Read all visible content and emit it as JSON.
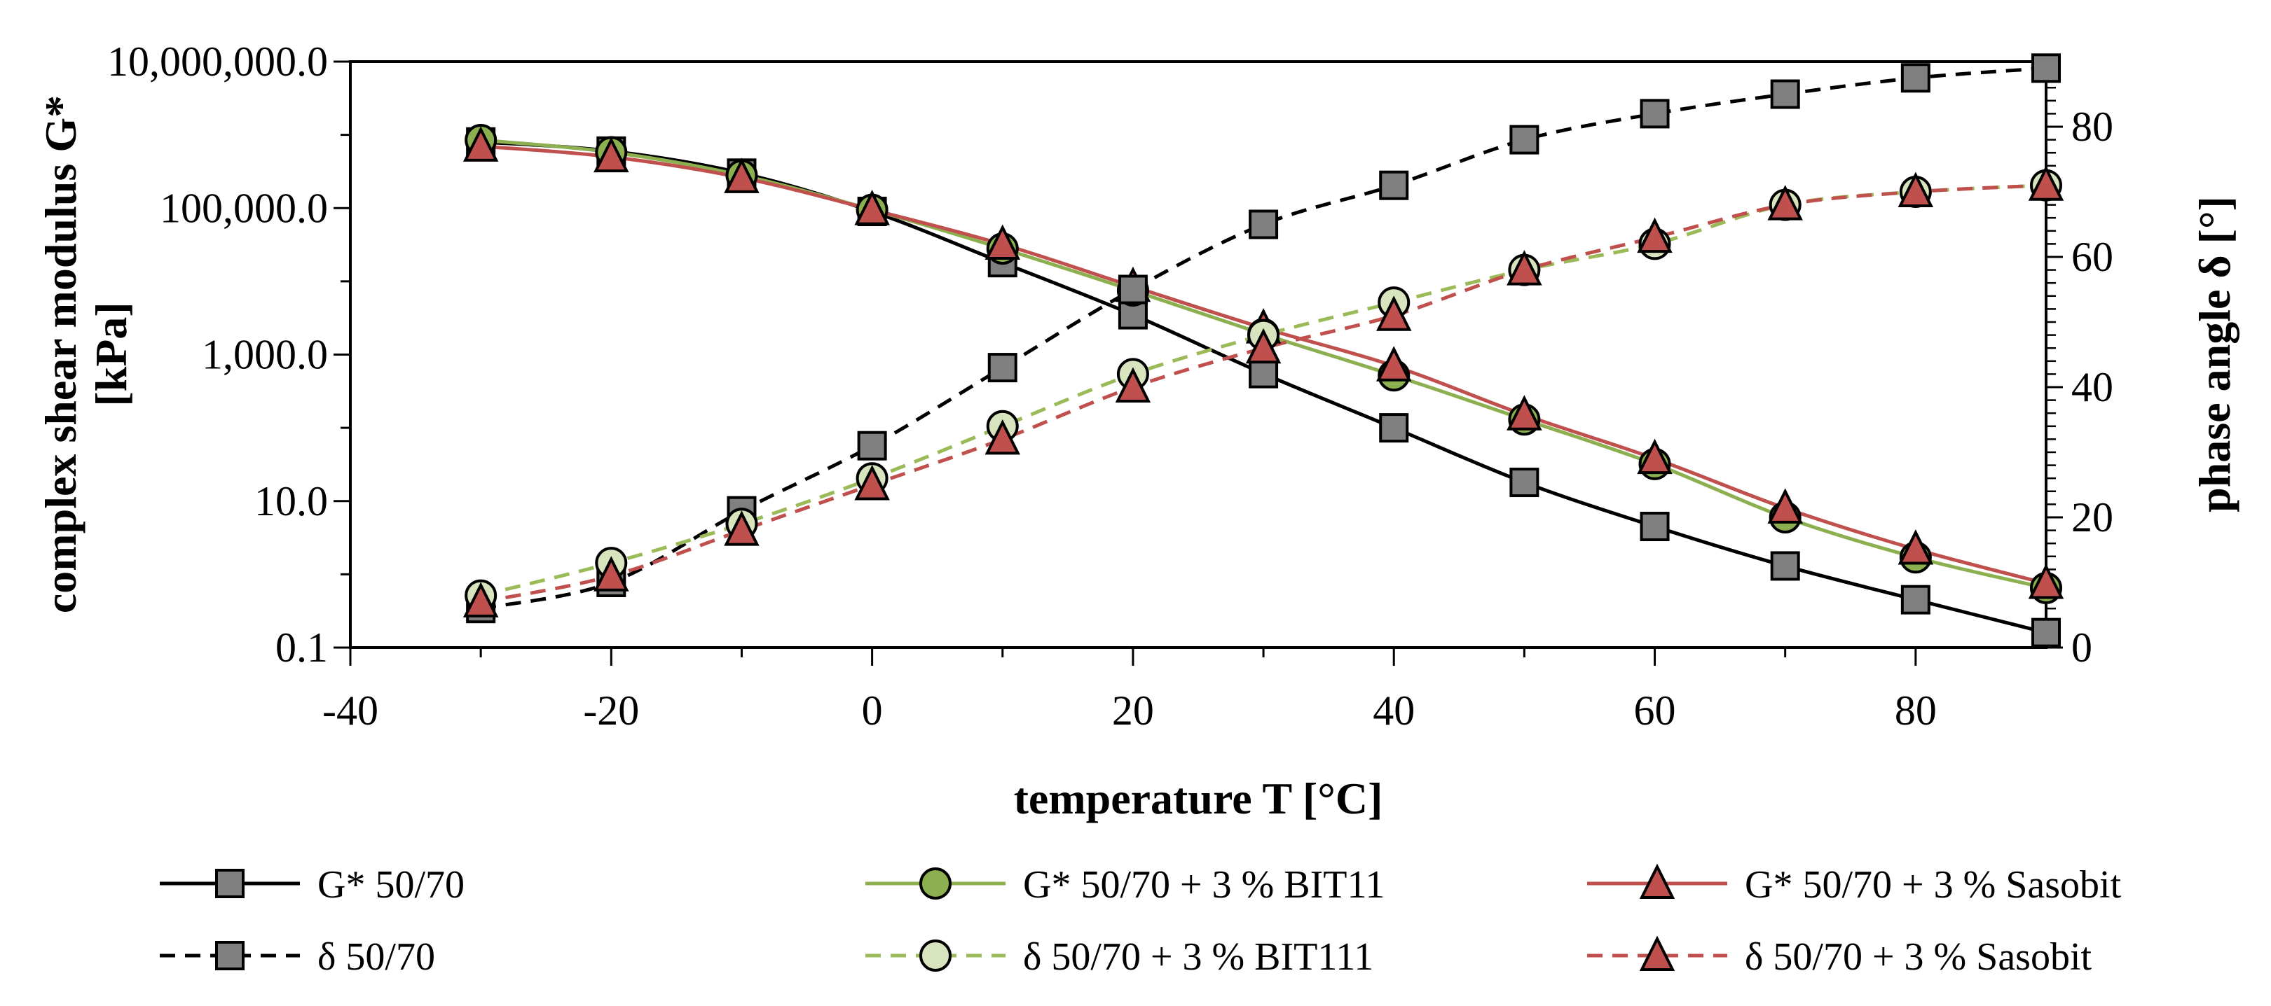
{
  "chart_data": {
    "type": "line",
    "title": "",
    "xlabel": "temperature T [°C]",
    "ylabel_lines": [
      "complex shear modulus G*",
      "[kPa]"
    ],
    "y2label": "phase angle δ [°]",
    "xlim": [
      -40,
      90
    ],
    "x_ticks": [
      -40,
      -20,
      0,
      20,
      40,
      60,
      80
    ],
    "x_tick_labels": [
      "-40",
      "-20",
      "0",
      "20",
      "40",
      "60",
      "80"
    ],
    "y_log": true,
    "ylim_log10": [
      -1,
      7
    ],
    "y_ticks_log10": [
      -1,
      1,
      3,
      5,
      7
    ],
    "y_tick_labels": [
      "0.1",
      "10.0",
      "1,000.0",
      "100,000.0",
      "10,000,000.0"
    ],
    "y2lim": [
      0,
      90
    ],
    "y2_ticks": [
      0,
      20,
      40,
      60,
      80
    ],
    "y2_tick_labels": [
      "0",
      "20",
      "40",
      "60",
      "80"
    ],
    "x": [
      -30,
      -20,
      -10,
      0,
      10,
      20,
      30,
      40,
      50,
      60,
      70,
      80,
      90
    ],
    "series": [
      {
        "name": "G* 50/70",
        "axis": "left",
        "color": "#000000",
        "dash": "solid",
        "marker": "square",
        "marker_fill": "#808080",
        "values": [
          800000,
          600000,
          300000,
          90000,
          18000,
          3500,
          550,
          100,
          18,
          4.5,
          1.3,
          0.45,
          0.16
        ]
      },
      {
        "name": "G* 50/70 + 3 % BIT11",
        "axis": "left",
        "color": "#8cb04f",
        "dash": "solid",
        "marker": "circle",
        "marker_fill": "#8cb04f",
        "values": [
          850000,
          580000,
          280000,
          95000,
          28000,
          7500,
          1900,
          520,
          130,
          32,
          6,
          1.7,
          0.65
        ]
      },
      {
        "name": "G* 50/70 + 3 % Sasobit",
        "axis": "left",
        "color": "#c0504d",
        "dash": "solid",
        "marker": "triangle",
        "marker_fill": "#c0504d",
        "values": [
          700000,
          500000,
          260000,
          95000,
          32000,
          8500,
          2300,
          700,
          150,
          38,
          8,
          2.2,
          0.75
        ]
      },
      {
        "name": "δ 50/70",
        "axis": "right",
        "color": "#000000",
        "dash": "dashed",
        "marker": "square",
        "marker_fill": "#808080",
        "values": [
          6,
          10,
          21,
          31,
          43,
          55,
          65,
          71,
          78,
          82,
          85,
          87.5,
          89
        ]
      },
      {
        "name": "δ 50/70 + 3 % BIT111",
        "axis": "right",
        "color": "#9bbb59",
        "dash": "dashed",
        "marker": "circle",
        "marker_fill": "#d7e4bd",
        "values": [
          8,
          13,
          19,
          26,
          34,
          42,
          48,
          53,
          58,
          62,
          68,
          70,
          71
        ]
      },
      {
        "name": "δ 50/70 + 3 % Sasobit",
        "axis": "right",
        "color": "#c0504d",
        "dash": "dashed",
        "marker": "triangle",
        "marker_fill": "#c0504d",
        "values": [
          7,
          11,
          18,
          25,
          32,
          40,
          46,
          51,
          58,
          63,
          68,
          70,
          71
        ]
      }
    ]
  }
}
